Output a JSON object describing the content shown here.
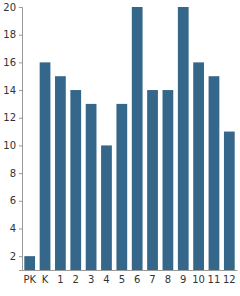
{
  "chart_data": {
    "type": "bar",
    "categories": [
      "PK",
      "K",
      "1",
      "2",
      "3",
      "4",
      "5",
      "6",
      "7",
      "8",
      "9",
      "10",
      "11",
      "12"
    ],
    "values": [
      2,
      16,
      15,
      14,
      13,
      10,
      13,
      20,
      14,
      14,
      20,
      16,
      15,
      11
    ],
    "color": "#346789",
    "ylim": [
      1,
      20
    ],
    "yticks": [
      2,
      4,
      6,
      8,
      10,
      12,
      14,
      16,
      18,
      20
    ],
    "grid": false
  }
}
